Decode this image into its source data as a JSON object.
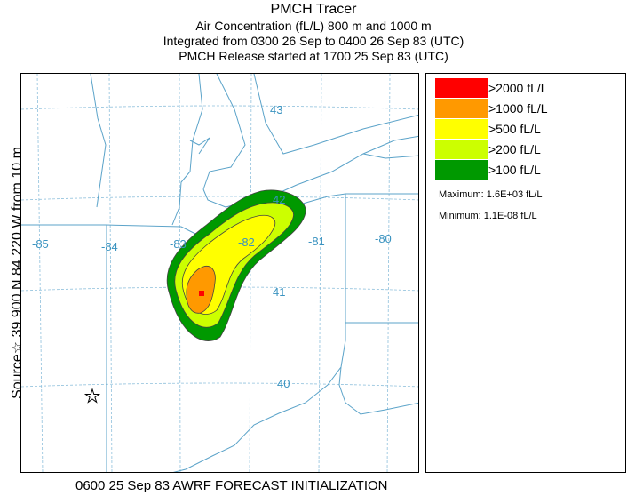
{
  "header": {
    "title": "PMCH Tracer",
    "line2": "Air Concentration (fL/L)  800 m and  1000 m",
    "line3": "Integrated from 0300 26 Sep to 0400 26 Sep 83 (UTC)",
    "line4": "PMCH Release started at 1700 25 Sep 83 (UTC)"
  },
  "side_label": "Source☆ 39.900  N  84.220  W     from   10 m",
  "map": {
    "longitude_labels": [
      "-85",
      "-84",
      "-83",
      "-82",
      "-81",
      "-80"
    ],
    "latitude_labels": [
      "43",
      "42",
      "41",
      "40"
    ],
    "source_marker": "star-icon",
    "colors": {
      "boundary": "#5ba3c9",
      "grid": "#8fc0dc",
      "label": "#3a93c0"
    }
  },
  "legend": {
    "items": [
      {
        "label": ">2000 fL/L",
        "color": "#ff0000"
      },
      {
        "label": ">1000 fL/L",
        "color": "#ff9900"
      },
      {
        "label": ">500 fL/L",
        "color": "#ffff00"
      },
      {
        "label": ">200 fL/L",
        "color": "#ccff00"
      },
      {
        "label": ">100 fL/L",
        "color": "#009900"
      }
    ],
    "maximum": "Maximum: 1.6E+03 fL/L",
    "minimum": "Minimum: 1.1E-08 fL/L"
  },
  "footer": "0600 25 Sep 83 AWRF FORECAST INITIALIZATION"
}
